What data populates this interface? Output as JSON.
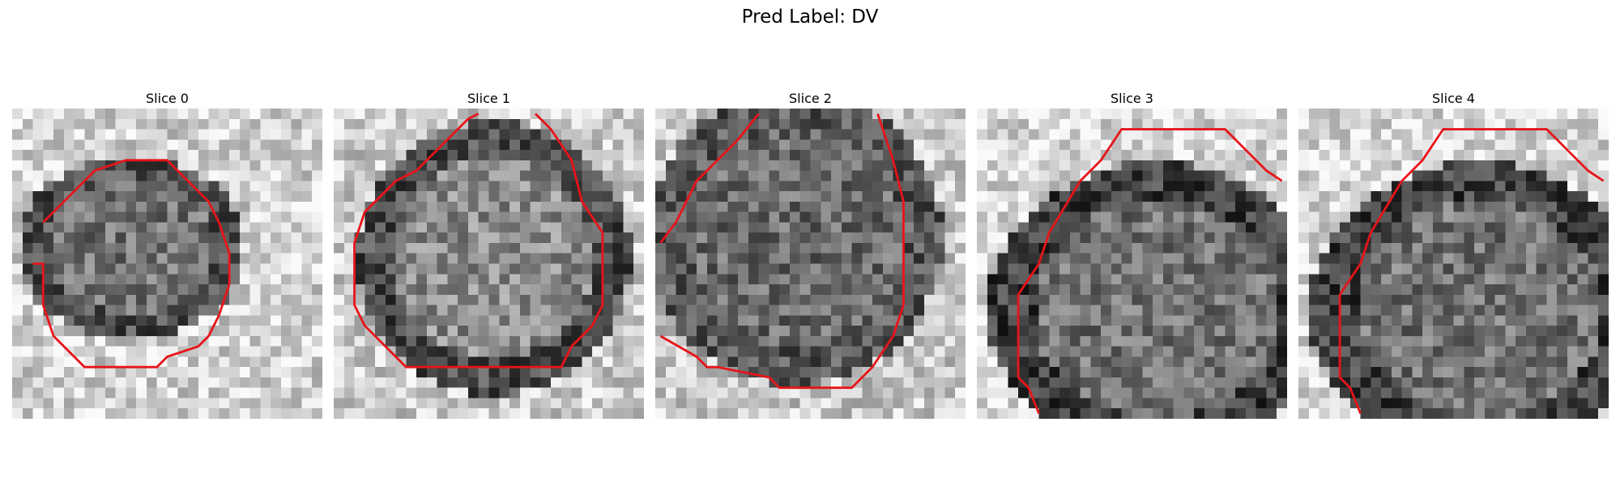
{
  "title": "Pred Label: DV",
  "contour_color": "#e8141a",
  "slices": [
    {
      "label": "Slice 0",
      "icon": "grayscale-mri-slice-with-red-contour"
    },
    {
      "label": "Slice 1",
      "icon": "grayscale-mri-slice-with-red-contour"
    },
    {
      "label": "Slice 2",
      "icon": "grayscale-mri-slice-with-red-contour"
    },
    {
      "label": "Slice 3",
      "icon": "grayscale-mri-slice-with-red-contour"
    },
    {
      "label": "Slice 4",
      "icon": "grayscale-mri-slice-with-red-contour"
    }
  ]
}
